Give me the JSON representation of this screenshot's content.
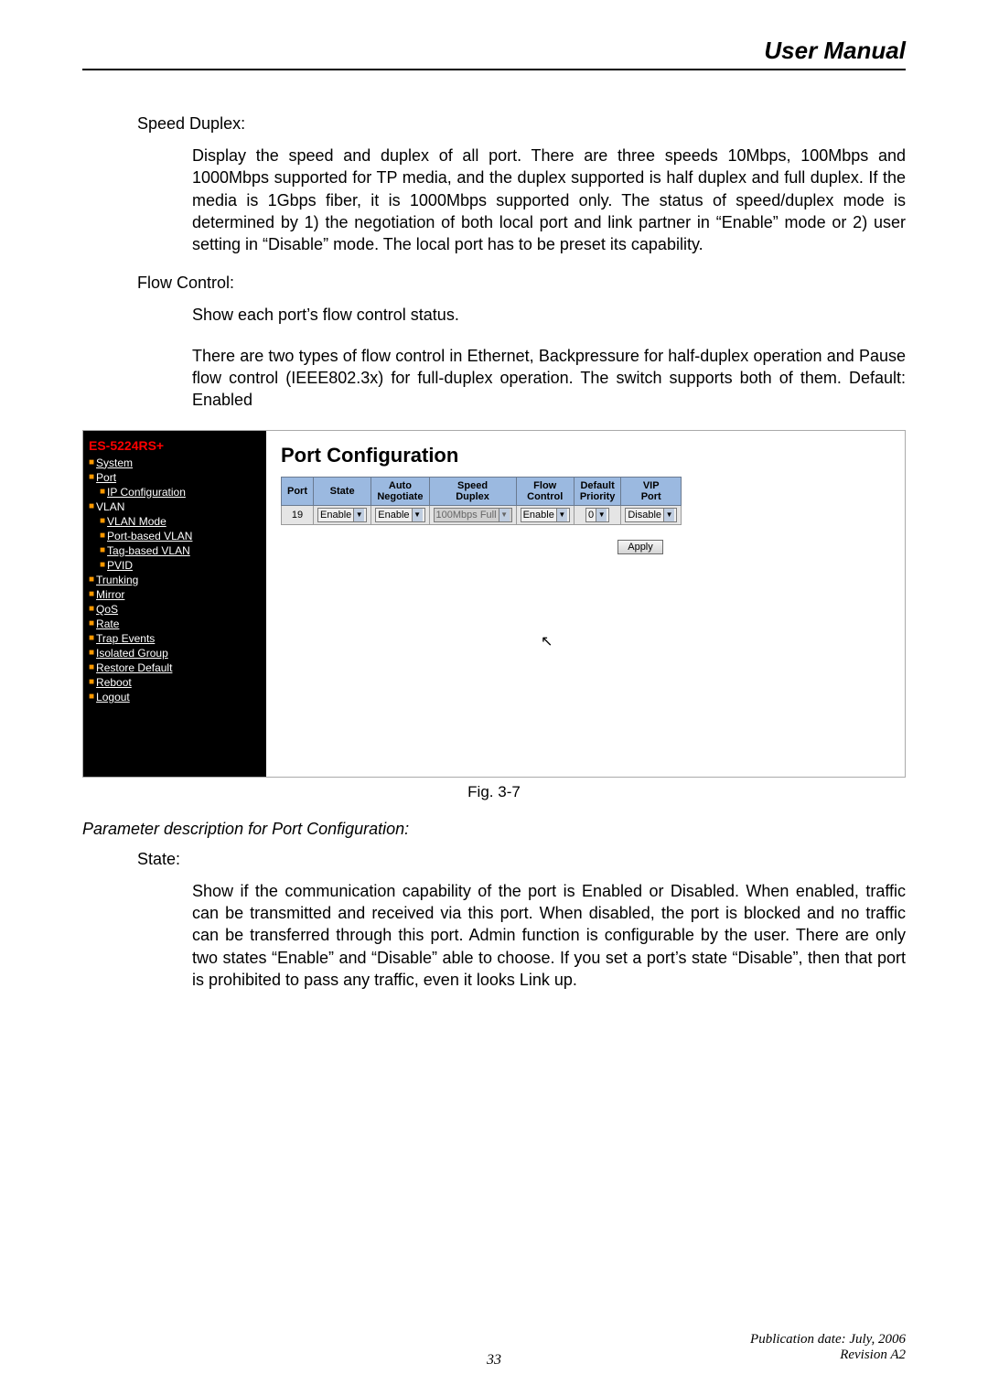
{
  "doc": {
    "header_title": "User Manual",
    "speed_label": "Speed Duplex:",
    "speed_body": "Display the speed and duplex of all port. There are three speeds 10Mbps, 100Mbps and 1000Mbps supported for TP media, and the duplex supported is half duplex and full duplex. If the media is 1Gbps fiber, it is 1000Mbps supported only. The status of speed/duplex mode is determined by 1) the negotiation of both local port and link partner in “Enable” mode or 2) user setting in “Disable” mode. The local port has to be preset its capability.",
    "flow_label": "Flow Control:",
    "flow_body1": "Show each port’s flow control status.",
    "flow_body2": "There are two types of flow control in Ethernet, Backpressure for half-duplex operation and Pause flow control (IEEE802.3x) for full-duplex operation. The switch supports both of them. Default: Enabled",
    "fig_caption": "Fig. 3-7",
    "param_desc": "Parameter description for Port Configuration:",
    "state_label": "State:",
    "state_body": "Show if the communication capability of the port is Enabled or Disabled. When enabled, traffic can be transmitted and received via this port. When disabled, the port is blocked and no traffic can be transferred through this port. Admin function is configurable by the user. There are only two states “Enable” and “Disable” able to choose. If you set a port’s state “Disable”, then that port is prohibited to pass any traffic, even it looks Link up.",
    "footer_line1": "Publication date: July, 2006",
    "footer_line2": "Revision A2",
    "page_number": "33"
  },
  "screenshot": {
    "product": "ES-5224RS+",
    "title": "Port Configuration",
    "nav": [
      {
        "label": "System",
        "indent": 0,
        "underline": true
      },
      {
        "label": "Port",
        "indent": 0,
        "underline": true
      },
      {
        "label": "IP Configuration",
        "indent": 1,
        "underline": true
      },
      {
        "label": "VLAN",
        "indent": 0,
        "underline": false
      },
      {
        "label": "VLAN Mode",
        "indent": 1,
        "underline": true
      },
      {
        "label": "Port-based VLAN",
        "indent": 1,
        "underline": true
      },
      {
        "label": "Tag-based VLAN",
        "indent": 1,
        "underline": true
      },
      {
        "label": "PVID",
        "indent": 1,
        "underline": true
      },
      {
        "label": "Trunking",
        "indent": 0,
        "underline": true
      },
      {
        "label": "Mirror",
        "indent": 0,
        "underline": true
      },
      {
        "label": "QoS",
        "indent": 0,
        "underline": true
      },
      {
        "label": "Rate",
        "indent": 0,
        "underline": true
      },
      {
        "label": "Trap Events",
        "indent": 0,
        "underline": true
      },
      {
        "label": "Isolated Group",
        "indent": 0,
        "underline": true
      },
      {
        "label": "Restore Default",
        "indent": 0,
        "underline": true
      },
      {
        "label": "Reboot",
        "indent": 0,
        "underline": true
      },
      {
        "label": "Logout",
        "indent": 0,
        "underline": true
      }
    ],
    "table": {
      "headers": [
        "Port",
        "State",
        "Auto Negotiate",
        "Speed Duplex",
        "Flow Control",
        "Default Priority",
        "VIP Port"
      ],
      "row": {
        "port": "19",
        "state": "Enable",
        "auto": "Enable",
        "speed": "100Mbps Full",
        "flow": "Enable",
        "prio": "0",
        "vip": "Disable"
      }
    },
    "apply_label": "Apply",
    "colors": {
      "sidebar_bg": "#000000",
      "product_color": "#ff0000",
      "bullet_color": "#ff9900",
      "th_bg": "#9bb9e0"
    }
  }
}
